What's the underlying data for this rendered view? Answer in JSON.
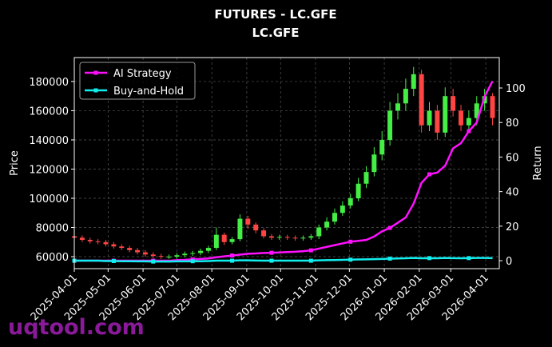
{
  "chart_data": {
    "type": "candlestick",
    "title": "FUTURES - LC.GFE",
    "subtitle": "LC.GFE",
    "ylabel": "Price",
    "y2label": "Return",
    "watermark": "uqtool.com",
    "up_color": "#44ee44",
    "down_color": "#ff4444",
    "grid": true,
    "legend": "upper left",
    "xlim": [
      "2025-04-01",
      "2026-04-13"
    ],
    "xticks": [
      "2025-04-01",
      "2025-05-01",
      "2025-06-01",
      "2025-07-01",
      "2025-08-01",
      "2025-09-01",
      "2025-10-01",
      "2025-11-01",
      "2025-12-01",
      "2026-01-01",
      "2026-02-01",
      "2026-03-01",
      "2026-04-01"
    ],
    "ylim": [
      51800,
      196400
    ],
    "yticks": [
      60000,
      80000,
      100000,
      120000,
      140000,
      160000,
      180000
    ],
    "y2lim": [
      -4.6,
      117.6
    ],
    "y2ticks": [
      0,
      20,
      40,
      60,
      80,
      100
    ],
    "x": [
      "2025-04-01",
      "2025-04-08",
      "2025-04-15",
      "2025-04-22",
      "2025-04-29",
      "2025-05-06",
      "2025-05-13",
      "2025-05-20",
      "2025-05-27",
      "2025-06-03",
      "2025-06-10",
      "2025-06-17",
      "2025-06-24",
      "2025-07-01",
      "2025-07-08",
      "2025-07-15",
      "2025-07-22",
      "2025-07-29",
      "2025-08-05",
      "2025-08-12",
      "2025-08-19",
      "2025-08-26",
      "2025-09-02",
      "2025-09-09",
      "2025-09-16",
      "2025-09-23",
      "2025-09-30",
      "2025-10-07",
      "2025-10-14",
      "2025-10-21",
      "2025-10-28",
      "2025-11-04",
      "2025-11-11",
      "2025-11-18",
      "2025-11-25",
      "2025-12-02",
      "2025-12-09",
      "2025-12-16",
      "2025-12-23",
      "2025-12-30",
      "2026-01-06",
      "2026-01-13",
      "2026-01-20",
      "2026-01-27",
      "2026-02-03",
      "2026-02-10",
      "2026-02-17",
      "2026-02-24",
      "2026-03-03",
      "2026-03-10",
      "2026-03-17",
      "2026-03-24",
      "2026-03-31",
      "2026-04-07"
    ],
    "open": [
      74000,
      73000,
      71500,
      70500,
      70000,
      68500,
      67000,
      66000,
      64500,
      63000,
      61500,
      60500,
      60000,
      60000,
      61000,
      62000,
      62500,
      64000,
      66000,
      75000,
      70000,
      72000,
      86000,
      82000,
      78000,
      74000,
      73000,
      73500,
      73000,
      72500,
      73000,
      74000,
      80000,
      84000,
      90000,
      95000,
      100000,
      110000,
      118000,
      130000,
      140000,
      160000,
      165000,
      175000,
      185000,
      150000,
      160000,
      145000,
      170000,
      160000,
      150000,
      155000,
      165000,
      170000
    ],
    "high": [
      75500,
      74500,
      73000,
      72000,
      71500,
      70000,
      68500,
      67500,
      66000,
      64500,
      63000,
      62000,
      61500,
      62500,
      63500,
      64000,
      65500,
      67500,
      80000,
      76500,
      73500,
      89000,
      88000,
      83500,
      79500,
      75500,
      75000,
      75000,
      74500,
      74500,
      75500,
      82000,
      87000,
      93000,
      98000,
      103000,
      114000,
      122000,
      135000,
      146000,
      166000,
      172000,
      182000,
      190000,
      188000,
      166000,
      164000,
      176000,
      175000,
      164000,
      160000,
      170000,
      175000,
      172000
    ],
    "low": [
      71500,
      70000,
      69000,
      68500,
      67000,
      65500,
      64500,
      63000,
      61500,
      60000,
      59000,
      58500,
      58500,
      58500,
      59500,
      60500,
      61000,
      62500,
      64500,
      68000,
      68500,
      70500,
      79000,
      76000,
      72500,
      71500,
      71500,
      71500,
      71000,
      71000,
      71500,
      72000,
      78000,
      82000,
      88000,
      93000,
      98000,
      107000,
      115000,
      126000,
      136000,
      154000,
      160000,
      170000,
      145000,
      146000,
      140000,
      142000,
      156000,
      146000,
      145000,
      150000,
      160000,
      150000
    ],
    "close": [
      73000,
      71500,
      70500,
      70000,
      68500,
      67000,
      66000,
      64500,
      63000,
      61500,
      60500,
      60000,
      60000,
      61000,
      62000,
      62500,
      64000,
      66000,
      75000,
      70000,
      72000,
      86000,
      82000,
      78000,
      74000,
      73000,
      73500,
      73000,
      72500,
      73000,
      74000,
      80000,
      84000,
      90000,
      95000,
      100000,
      110000,
      118000,
      130000,
      140000,
      160000,
      165000,
      175000,
      185000,
      150000,
      160000,
      145000,
      170000,
      160000,
      150000,
      155000,
      165000,
      170000,
      155000
    ],
    "series": [
      {
        "name": "AI Strategy",
        "color": "#ff11ff",
        "axis": "y2",
        "values": [
          0,
          0,
          0,
          0,
          0,
          0,
          0,
          0,
          0,
          0,
          0,
          0,
          0,
          0.3,
          0.5,
          0.8,
          1,
          1.3,
          2,
          2.5,
          3,
          3.5,
          4,
          4.2,
          4.5,
          4.6,
          4.8,
          5,
          5.2,
          5.5,
          6,
          7,
          8,
          9,
          10,
          11,
          11.5,
          12,
          14,
          17,
          19,
          22,
          25,
          33,
          45,
          50,
          51,
          55,
          65,
          68,
          75,
          80,
          95,
          104
        ]
      },
      {
        "name": "Buy-and-Hold",
        "color": "#11eeee",
        "axis": "y2",
        "values": [
          0,
          0,
          0,
          0,
          -0.2,
          -0.2,
          -0.3,
          -0.3,
          -0.4,
          -0.4,
          -0.5,
          -0.5,
          -0.5,
          -0.4,
          -0.4,
          -0.3,
          -0.3,
          -0.2,
          0,
          0,
          0,
          0.2,
          0.2,
          0.1,
          0,
          0,
          0,
          0,
          0,
          0,
          0,
          0.2,
          0.3,
          0.4,
          0.5,
          0.6,
          0.7,
          0.8,
          0.9,
          1,
          1.2,
          1.3,
          1.4,
          1.6,
          1.4,
          1.5,
          1.4,
          1.6,
          1.5,
          1.4,
          1.5,
          1.6,
          1.6,
          1.5
        ]
      }
    ]
  }
}
